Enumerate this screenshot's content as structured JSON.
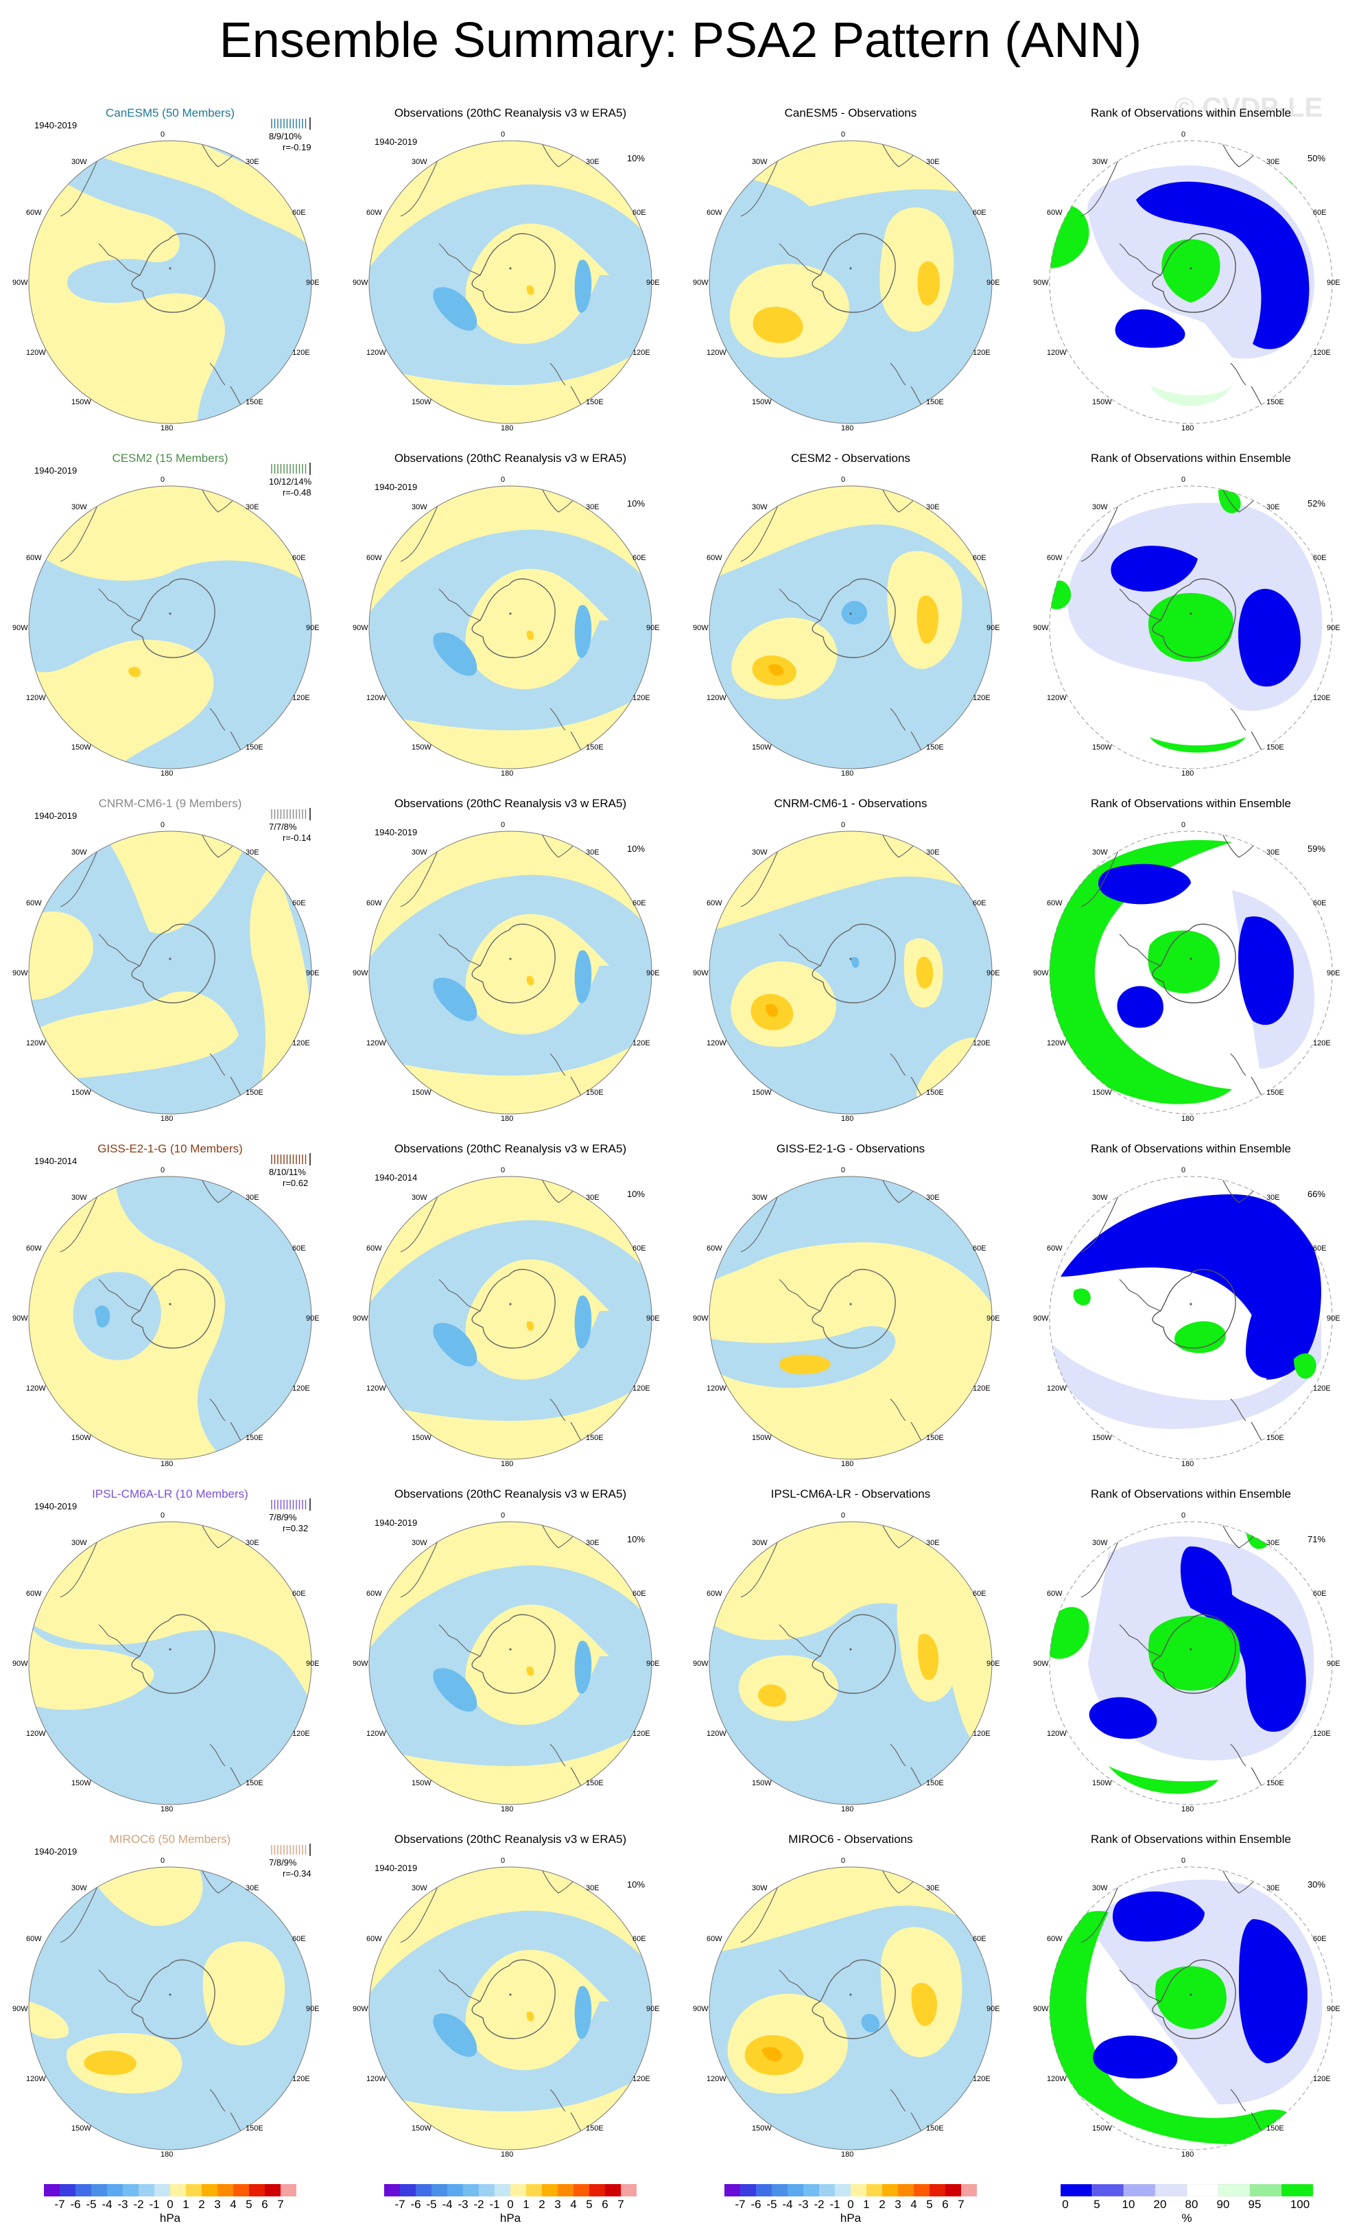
{
  "title": "Ensemble Summary: PSA2 Pattern (ANN)",
  "watermark": "© CVDP-LE",
  "colors": {
    "yellow": "#fff7a8",
    "blue": "#b3dcf1",
    "mid_blue": "#6cbcee",
    "gold": "#ffd22a",
    "orange": "#ffb400",
    "rank_blue": "#0000ee",
    "rank_lav": "#dfe2fb",
    "rank_green": "#11ee11",
    "rank_mint": "#ddffdd"
  },
  "longitude_labels": [
    "0",
    "30E",
    "60E",
    "90E",
    "120E",
    "150E",
    "180",
    "150W",
    "120W",
    "90W",
    "60W",
    "30W"
  ],
  "column_titles": {
    "obs": "Observations (20thC Reanalysis v3 w ERA5)",
    "rank": "Rank of Observations within Ensemble"
  },
  "rows": [
    {
      "model": "CanESM5 (50 Members)",
      "model_color": "#1e7896",
      "period": "1940-2019",
      "stats": "8/9/10%",
      "r": "r=-0.19",
      "obs_pct": "10%",
      "diff_title": "CanESM5 - Observations",
      "rank_pct": "50%"
    },
    {
      "model": "CESM2 (15 Members)",
      "model_color": "#4c8c4c",
      "period": "1940-2019",
      "stats": "10/12/14%",
      "r": "r=-0.48",
      "obs_pct": "10%",
      "diff_title": "CESM2 - Observations",
      "rank_pct": "52%"
    },
    {
      "model": "CNRM-CM6-1 (9 Members)",
      "model_color": "#888888",
      "period": "1940-2019",
      "stats": "7/7/8%",
      "r": "r=-0.14",
      "obs_pct": "10%",
      "diff_title": "CNRM-CM6-1 - Observations",
      "rank_pct": "59%"
    },
    {
      "model": "GISS-E2-1-G (10 Members)",
      "model_color": "#8a3c14",
      "period": "1940-2014",
      "stats": "8/10/11%",
      "r": "r=0.62",
      "obs_pct": "10%",
      "diff_title": "GISS-E2-1-G - Observations",
      "rank_pct": "66%"
    },
    {
      "model": "IPSL-CM6A-LR (10 Members)",
      "model_color": "#7a50dc",
      "period": "1940-2019",
      "stats": "7/8/9%",
      "r": "r=0.32",
      "obs_pct": "10%",
      "diff_title": "IPSL-CM6A-LR - Observations",
      "rank_pct": "71%"
    },
    {
      "model": "MIROC6 (50 Members)",
      "model_color": "#d2a078",
      "period": "1940-2019",
      "stats": "7/8/9%",
      "r": "r=-0.34",
      "obs_pct": "10%",
      "diff_title": "MIROC6 - Observations",
      "rank_pct": "30%"
    }
  ],
  "colorbars": {
    "hpa": {
      "labels": [
        "-7",
        "-6",
        "-5",
        "-4",
        "-3",
        "-2",
        "-1",
        "0",
        "1",
        "2",
        "3",
        "4",
        "5",
        "6",
        "7"
      ],
      "colors": [
        "#6a0cd8",
        "#3a3ee0",
        "#3f6ee6",
        "#4a8fe8",
        "#5aa8ee",
        "#74bdf0",
        "#9ed2f3",
        "#c6e6f6",
        "#fff3a0",
        "#ffd84a",
        "#ffb000",
        "#ff8a00",
        "#ff5a00",
        "#e81e00",
        "#d00000",
        "#f4a2a2"
      ],
      "unit": "hPa"
    },
    "pct": {
      "labels": [
        "0",
        "5",
        "10",
        "20",
        "80",
        "90",
        "95",
        "100"
      ],
      "colors": [
        "#0000ee",
        "#5a5aee",
        "#aab0f8",
        "#dfe2fb",
        "#ffffff",
        "#ddffdd",
        "#99ee99",
        "#11ee11"
      ],
      "unit": "%"
    }
  }
}
